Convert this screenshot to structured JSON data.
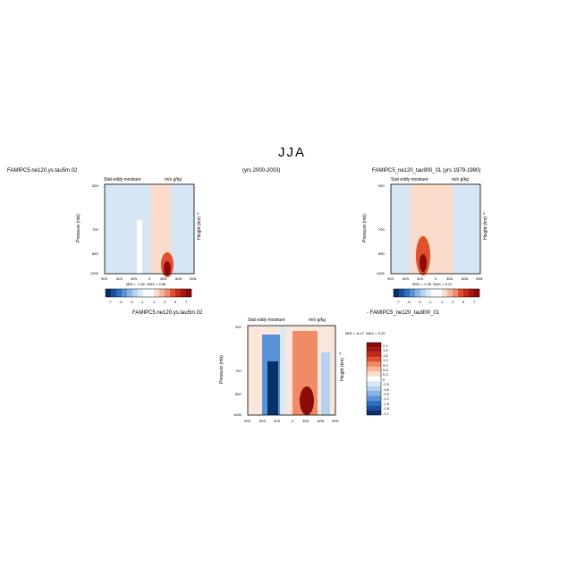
{
  "figure": {
    "title": "JJA",
    "headers": {
      "top_left_case": "FAMIPC5.ne120.ys.tau5m.02",
      "top_middle_years": "(yrs 2000-2003)",
      "top_right_case": "FAMIPC5_ne120_tau900_01 (yrs 1979-1980)",
      "bottom_diff": "FAMIPC5.ne120.ys.tau5m.02",
      "bottom_diff_rhs": "- FAMIPC5_ne120_tau900_01"
    }
  },
  "colors": {
    "panel_blue": "#d9e9f7",
    "panel_salmon": "#fbdccb",
    "dark_red": "#8b0a0a",
    "dark_blue": "#08306b"
  },
  "chart_data": [
    {
      "type": "heatmap",
      "name_label": "Stat eddy moisture",
      "units": "m/s g/kg",
      "ylabel": "Pressure (mb)",
      "right_label": "Height (km)",
      "right_tick": "4",
      "xticks": [
        "90S",
        "60S",
        "30S",
        "0",
        "30N",
        "60N",
        "90N"
      ],
      "yticks": [
        "300",
        "700",
        "850",
        "1000"
      ],
      "stats": {
        "min_label": "MIN =",
        "min": "-1.82",
        "max_label": "MAX =",
        "max": "9.88"
      },
      "colorbar_ticks": [
        "-7",
        "-5",
        "-3",
        "-1",
        "1",
        "3",
        "5",
        "7"
      ]
    },
    {
      "type": "heatmap",
      "name_label": "Stat eddy moisture",
      "units": "m/s g/kg",
      "ylabel": "Pressure (mb)",
      "right_label": "Height (km)",
      "right_tick": "4",
      "xticks": [
        "90S",
        "60S",
        "30S",
        "0",
        "30N",
        "60N",
        "90N"
      ],
      "yticks": [
        "300",
        "700",
        "850",
        "1000"
      ],
      "stats": {
        "min_label": "MIN =",
        "min": "-2.06",
        "max_label": "MAX =",
        "max": "8.12"
      },
      "colorbar_ticks": [
        "-7",
        "-5",
        "-3",
        "-1",
        "1",
        "3",
        "5",
        "7"
      ]
    },
    {
      "type": "heatmap",
      "name_label": "Stat eddy moisture",
      "units": "m/s g/kg",
      "ylabel": "Pressure (mb)",
      "right_label": "Height (km)",
      "right_tick": "4",
      "xticks": [
        "90S",
        "60S",
        "30S",
        "0",
        "30N",
        "60N",
        "90N"
      ],
      "yticks": [
        "300",
        "700",
        "850",
        "1000"
      ],
      "stats": {
        "min_label": "MIN =",
        "min": "-8.17",
        "max_label": "MAX =",
        "max": "9.29"
      },
      "colorbar_ticks": [
        "2.1",
        "1.8",
        "1.5",
        "1.2",
        "0.9",
        "0.6",
        "0.3",
        "0",
        "-0.3",
        "-0.6",
        "-0.9",
        "-1.2",
        "-1.5",
        "-1.8",
        "-2.1"
      ]
    }
  ]
}
